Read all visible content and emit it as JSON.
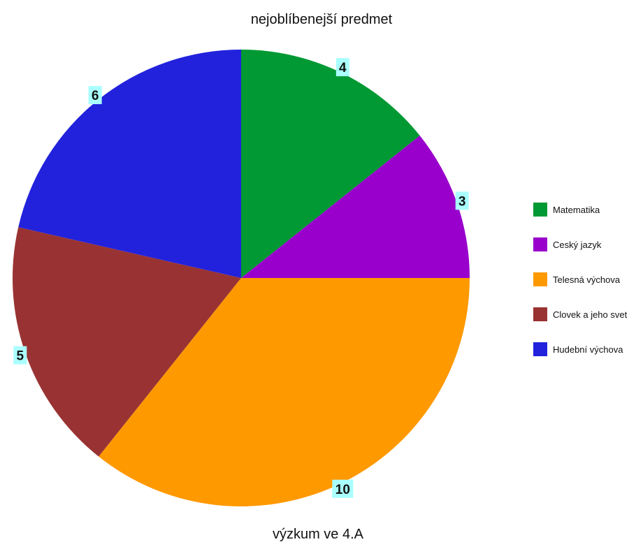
{
  "chart_data": {
    "type": "pie",
    "title": "nejoblíbenejší predmet",
    "subtitle": "výzkum ve 4.A",
    "categories": [
      "Matematika",
      "Ceský jazyk",
      "Telesná výchova",
      "Clovek a jeho svet",
      "Hudební výchova"
    ],
    "values": [
      4,
      3,
      10,
      5,
      6
    ],
    "colors": [
      "#009933",
      "#9900cc",
      "#ff9900",
      "#993333",
      "#2222dd"
    ],
    "data_label_background": "#aaffff",
    "start_direction": "top",
    "direction": "clockwise",
    "legend_position": "right"
  }
}
